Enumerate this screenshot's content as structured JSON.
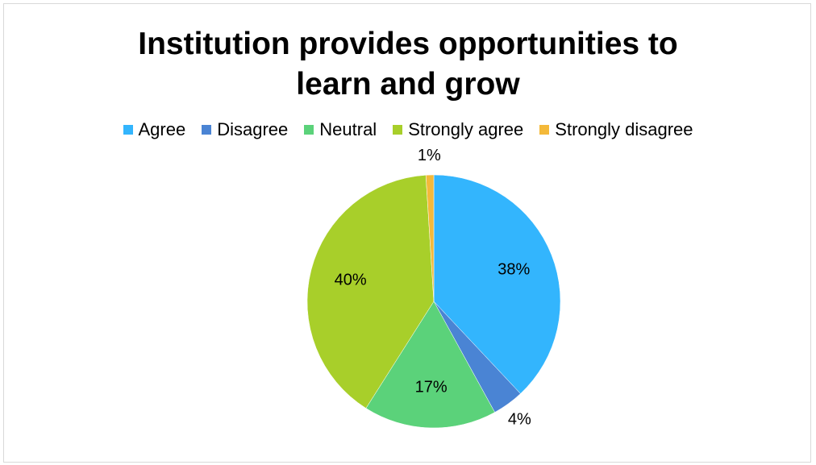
{
  "chart_data": {
    "type": "pie",
    "title": "Institution provides opportunities to learn and grow",
    "title_lines": [
      "Institution provides opportunities to",
      "learn and grow"
    ],
    "legend_position": "top",
    "categories": [
      "Agree",
      "Disagree",
      "Neutral",
      "Strongly agree",
      "Strongly disagree"
    ],
    "values": [
      38,
      4,
      17,
      40,
      1
    ],
    "labels": [
      "38%",
      "4%",
      "17%",
      "40%",
      "1%"
    ],
    "colors": [
      "#33b5fd",
      "#4a84d4",
      "#5bd27a",
      "#a8cf2a",
      "#f4b93a"
    ]
  }
}
